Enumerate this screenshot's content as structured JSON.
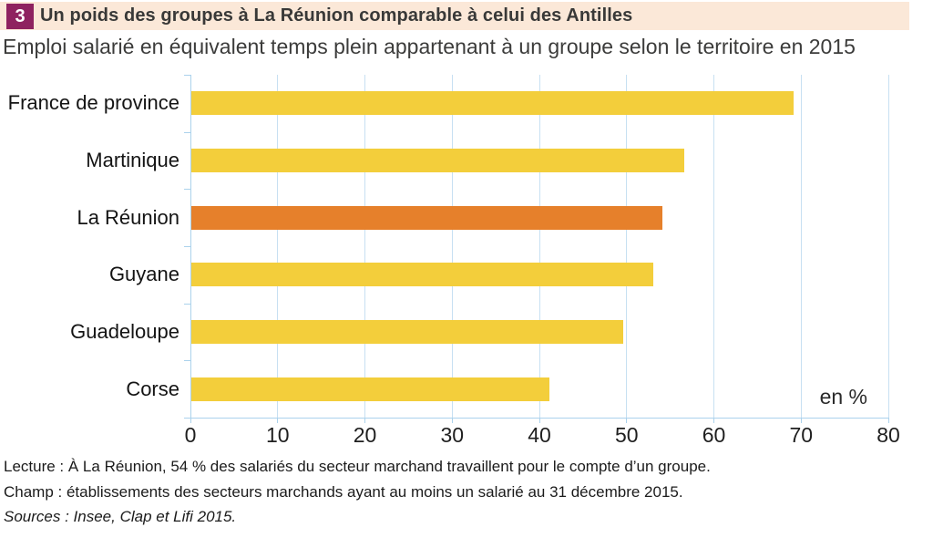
{
  "header": {
    "badge": "3",
    "title": "Un poids des groupes à La Réunion comparable à celui des Antilles",
    "subtitle": "Emploi salarié en équivalent temps plein appartenant à un groupe selon le territoire en 2015",
    "band_bg": "#FBE8D8",
    "badge_bg": "#8E2260"
  },
  "chart_data": {
    "type": "bar",
    "orientation": "horizontal",
    "title": "Emploi salarié en équivalent temps plein appartenant à un groupe selon le territoire en 2015",
    "categories": [
      "France de province",
      "Martinique",
      "La Réunion",
      "Guyane",
      "Guadeloupe",
      "Corse"
    ],
    "values": [
      69,
      56.5,
      54,
      53,
      49.5,
      41
    ],
    "highlight_category": "La Réunion",
    "unit_label": "en %",
    "xlim": [
      0,
      80
    ],
    "xticks": [
      0,
      10,
      20,
      30,
      40,
      50,
      60,
      70,
      80
    ],
    "grid": true,
    "bar_color": "#F3CE3B",
    "highlight_color": "#E6802B",
    "gridline_color": "#C7E0F2",
    "axis_color": "#ABD2EC"
  },
  "footer": {
    "lecture": "Lecture : À La Réunion, 54 % des salariés du secteur marchand travaillent pour le compte d’un groupe.",
    "champ": "Champ : établissements des secteurs marchands ayant au moins un salarié au 31 décembre 2015.",
    "sources": "Sources : Insee, Clap et Lifi 2015."
  }
}
